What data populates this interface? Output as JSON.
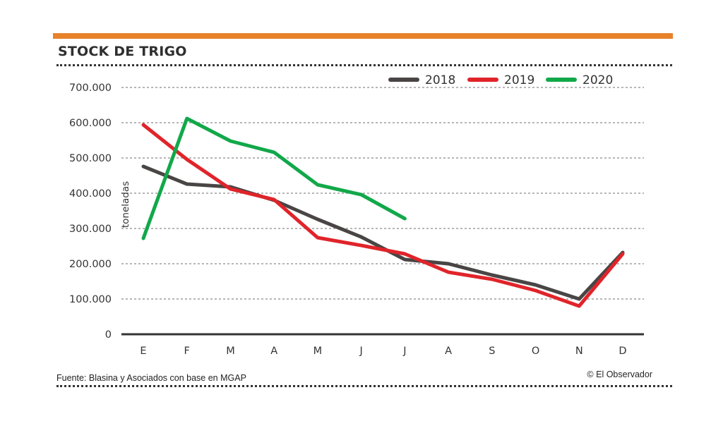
{
  "header": {
    "title": "STOCK DE TRIGO",
    "accent_color": "#e8822a"
  },
  "footer": {
    "source": "Fuente: Blasina y Asociados con base en MGAP",
    "credit": "© El Observador"
  },
  "chart_data": {
    "type": "line",
    "title": "STOCK DE TRIGO",
    "xlabel": "",
    "ylabel": "toneladas",
    "categories": [
      "E",
      "F",
      "M",
      "A",
      "M",
      "J",
      "J",
      "A",
      "S",
      "O",
      "N",
      "D"
    ],
    "ylim": [
      0,
      700000
    ],
    "yticks": [
      0,
      100000,
      200000,
      300000,
      400000,
      500000,
      600000,
      700000
    ],
    "ytick_labels": [
      "0",
      "100.000",
      "200.000",
      "300.000",
      "400.000",
      "500.000",
      "600.000",
      "700.000"
    ],
    "grid": true,
    "legend_position": "top-right",
    "series": [
      {
        "name": "2018",
        "color": "#4a4545",
        "values": [
          476000,
          426000,
          418000,
          380000,
          326000,
          276000,
          212000,
          200000,
          168000,
          140000,
          100000,
          232000
        ]
      },
      {
        "name": "2019",
        "color": "#e0242a",
        "values": [
          594000,
          496000,
          412000,
          382000,
          274000,
          252000,
          228000,
          176000,
          156000,
          124000,
          80000,
          228000
        ]
      },
      {
        "name": "2020",
        "color": "#12a84a",
        "values": [
          272000,
          612000,
          548000,
          516000,
          424000,
          396000,
          328000
        ]
      }
    ]
  }
}
